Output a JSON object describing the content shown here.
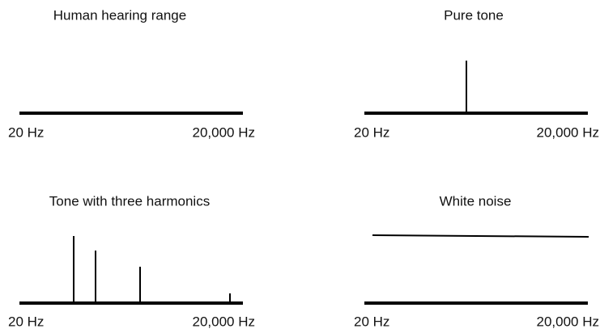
{
  "panels": [
    {
      "title": "Human hearing range",
      "low_label": "20 Hz",
      "high_label": "20,000 Hz"
    },
    {
      "title": "Pure tone",
      "low_label": "20 Hz",
      "high_label": "20,000 Hz"
    },
    {
      "title": "Tone with three harmonics",
      "low_label": "20 Hz",
      "high_label": "20,000 Hz"
    },
    {
      "title": "White noise",
      "low_label": "20 Hz",
      "high_label": "20,000 Hz"
    }
  ]
}
